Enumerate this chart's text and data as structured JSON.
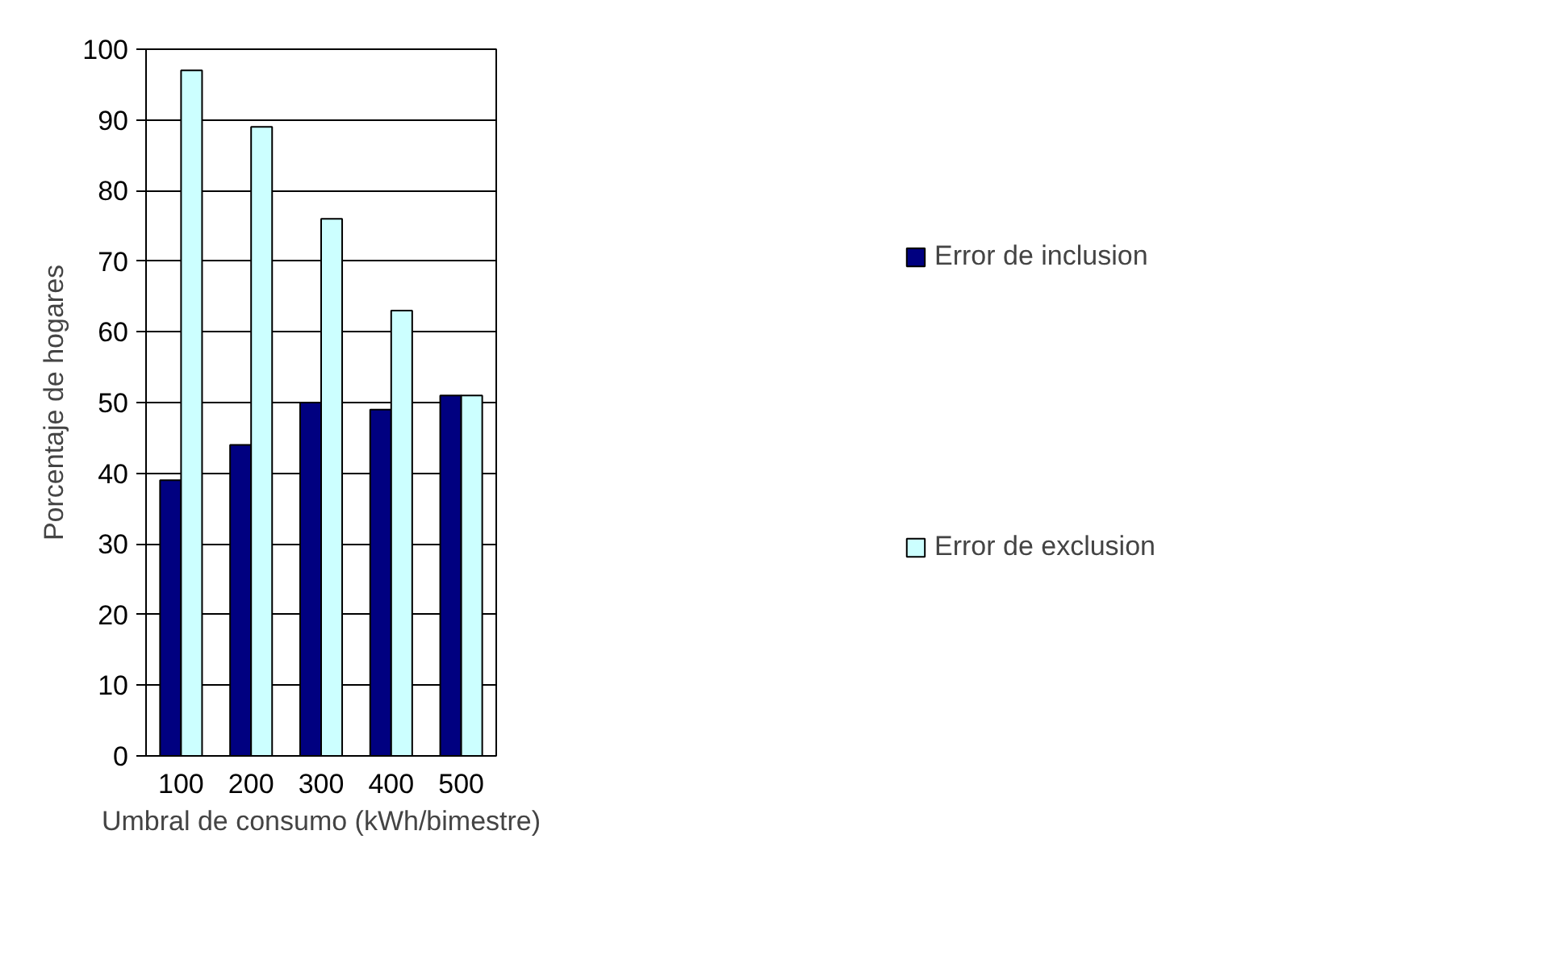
{
  "chart_data": {
    "type": "bar",
    "xlabel": "Umbral de consumo (kWh/bimestre)",
    "ylabel": "Porcentaje de hogares",
    "categories": [
      "100",
      "200",
      "300",
      "400",
      "500"
    ],
    "series": [
      {
        "name": "Error de inclusion",
        "color": "#000080",
        "values": [
          39,
          44,
          50,
          49,
          51
        ]
      },
      {
        "name": "Error de exclusion",
        "color": "#ccffff",
        "values": [
          97,
          89,
          76,
          63,
          51
        ]
      }
    ],
    "ylim": [
      0,
      100
    ],
    "yticks": [
      0,
      10,
      20,
      30,
      40,
      50,
      60,
      70,
      80,
      90,
      100
    ],
    "grid": "y",
    "legend": "right"
  }
}
